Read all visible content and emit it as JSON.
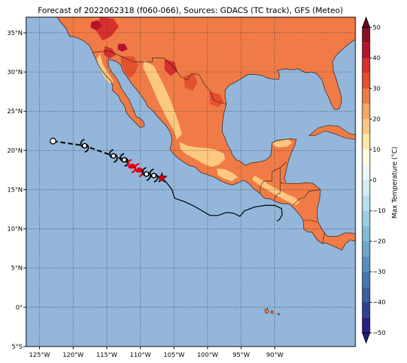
{
  "title": "Forecast of 2022062318 (f060-066), Sources: GDACS (TC track), GFS (Meteo)",
  "map": {
    "lon_range": [
      -127,
      -78
    ],
    "lat_range": [
      -5,
      37
    ],
    "x_ticks": [
      {
        "lon": -125,
        "label": "125°W"
      },
      {
        "lon": -120,
        "label": "120°W"
      },
      {
        "lon": -115,
        "label": "115°W"
      },
      {
        "lon": -110,
        "label": "110°W"
      },
      {
        "lon": -105,
        "label": "105°W"
      },
      {
        "lon": -100,
        "label": "100°W"
      },
      {
        "lon": -95,
        "label": "95°W"
      },
      {
        "lon": -90,
        "label": "90°W"
      }
    ],
    "y_ticks": [
      {
        "lat": 35,
        "label": "35°N"
      },
      {
        "lat": 30,
        "label": "30°N"
      },
      {
        "lat": 25,
        "label": "25°N"
      },
      {
        "lat": 20,
        "label": "20°N"
      },
      {
        "lat": 15,
        "label": "15°N"
      },
      {
        "lat": 10,
        "label": "10°N"
      },
      {
        "lat": 5,
        "label": "5°N"
      },
      {
        "lat": 0,
        "label": "0°"
      },
      {
        "lat": -5,
        "label": "5°S"
      }
    ]
  },
  "colorbar": {
    "label": "Max Temperature (°C)",
    "ticks": [
      {
        "value": 50,
        "label": "50"
      },
      {
        "value": 40,
        "label": "40"
      },
      {
        "value": 30,
        "label": "30"
      },
      {
        "value": 20,
        "label": "20"
      },
      {
        "value": 10,
        "label": "10"
      },
      {
        "value": 0,
        "label": "0"
      },
      {
        "value": -10,
        "label": "−10"
      },
      {
        "value": -20,
        "label": "−20"
      },
      {
        "value": -30,
        "label": "−30"
      },
      {
        "value": -40,
        "label": "−40"
      },
      {
        "value": -50,
        "label": "−50"
      }
    ],
    "bands": [
      {
        "from": 45,
        "to": 50,
        "color": "#8b0f25"
      },
      {
        "from": 40,
        "to": 45,
        "color": "#b3142b"
      },
      {
        "from": 35,
        "to": 40,
        "color": "#d7302c"
      },
      {
        "from": 30,
        "to": 35,
        "color": "#e5502f"
      },
      {
        "from": 25,
        "to": 30,
        "color": "#f07b46"
      },
      {
        "from": 20,
        "to": 25,
        "color": "#f9a860"
      },
      {
        "from": 15,
        "to": 20,
        "color": "#fdc880"
      },
      {
        "from": 10,
        "to": 15,
        "color": "#fee8a8"
      },
      {
        "from": 5,
        "to": 10,
        "color": "#fffbe3"
      },
      {
        "from": 0,
        "to": 5,
        "color": "#eef8f5"
      },
      {
        "from": -5,
        "to": 0,
        "color": "#d6eef2"
      },
      {
        "from": -10,
        "to": -5,
        "color": "#b8e1ec"
      },
      {
        "from": -15,
        "to": -10,
        "color": "#9bcfe4"
      },
      {
        "from": -20,
        "to": -15,
        "color": "#82bcd9"
      },
      {
        "from": -25,
        "to": -20,
        "color": "#6aa7cd"
      },
      {
        "from": -30,
        "to": -25,
        "color": "#5591c0"
      },
      {
        "from": -35,
        "to": -30,
        "color": "#4678b1"
      },
      {
        "from": -40,
        "to": -35,
        "color": "#3b5ea3"
      },
      {
        "from": -45,
        "to": -40,
        "color": "#303f95"
      },
      {
        "from": -50,
        "to": -45,
        "color": "#2a1f86"
      }
    ],
    "extend_top_color": "#6a0a1f",
    "extend_bottom_color": "#1f1a72"
  },
  "colors": {
    "ocean": "#93b6da",
    "land_base": "#f07b46",
    "land_cool": "#fdc880",
    "land_hot": "#e5502f",
    "land_very_hot": "#d7302c",
    "land_extreme": "#b3142b",
    "coast": "#1a1a1a",
    "track_forecast": "#000000",
    "track_observed": "#000000",
    "hurricane_symbol": "#e8000a",
    "current_position": "#e60000"
  },
  "track": {
    "forecast_points": [
      {
        "lon": -123.0,
        "lat": 21.2,
        "symbol": "open-circle"
      },
      {
        "lon": -118.3,
        "lat": 20.6,
        "symbol": "tropical-storm"
      },
      {
        "lon": -114.0,
        "lat": 19.3,
        "symbol": "tropical-storm"
      },
      {
        "lon": -112.4,
        "lat": 18.8,
        "symbol": "tropical-storm"
      },
      {
        "lon": -111.3,
        "lat": 18.0,
        "symbol": "hurricane"
      },
      {
        "lon": -110.2,
        "lat": 17.5,
        "symbol": "hurricane"
      },
      {
        "lon": -109.1,
        "lat": 17.0,
        "symbol": "tropical-storm"
      },
      {
        "lon": -108.0,
        "lat": 16.8,
        "symbol": "tropical-storm"
      }
    ],
    "current_position": {
      "lon": -106.8,
      "lat": 16.5
    },
    "observed_path": [
      [
        -106.8,
        16.5
      ],
      [
        -106.0,
        15.8
      ],
      [
        -105.3,
        15.0
      ],
      [
        -104.9,
        13.9
      ],
      [
        -103.5,
        13.5
      ],
      [
        -102.0,
        12.9
      ],
      [
        -100.6,
        12.2
      ],
      [
        -99.6,
        11.7
      ],
      [
        -98.5,
        11.7
      ],
      [
        -97.2,
        12.1
      ],
      [
        -96.1,
        12.0
      ],
      [
        -95.2,
        11.6
      ],
      [
        -94.5,
        12.3
      ],
      [
        -93.0,
        12.8
      ],
      [
        -91.4,
        13.0
      ],
      [
        -90.0,
        13.0
      ],
      [
        -89.0,
        12.6
      ],
      [
        -88.9,
        11.8
      ],
      [
        -89.3,
        11.2
      ],
      [
        -89.7,
        11.0
      ]
    ]
  }
}
